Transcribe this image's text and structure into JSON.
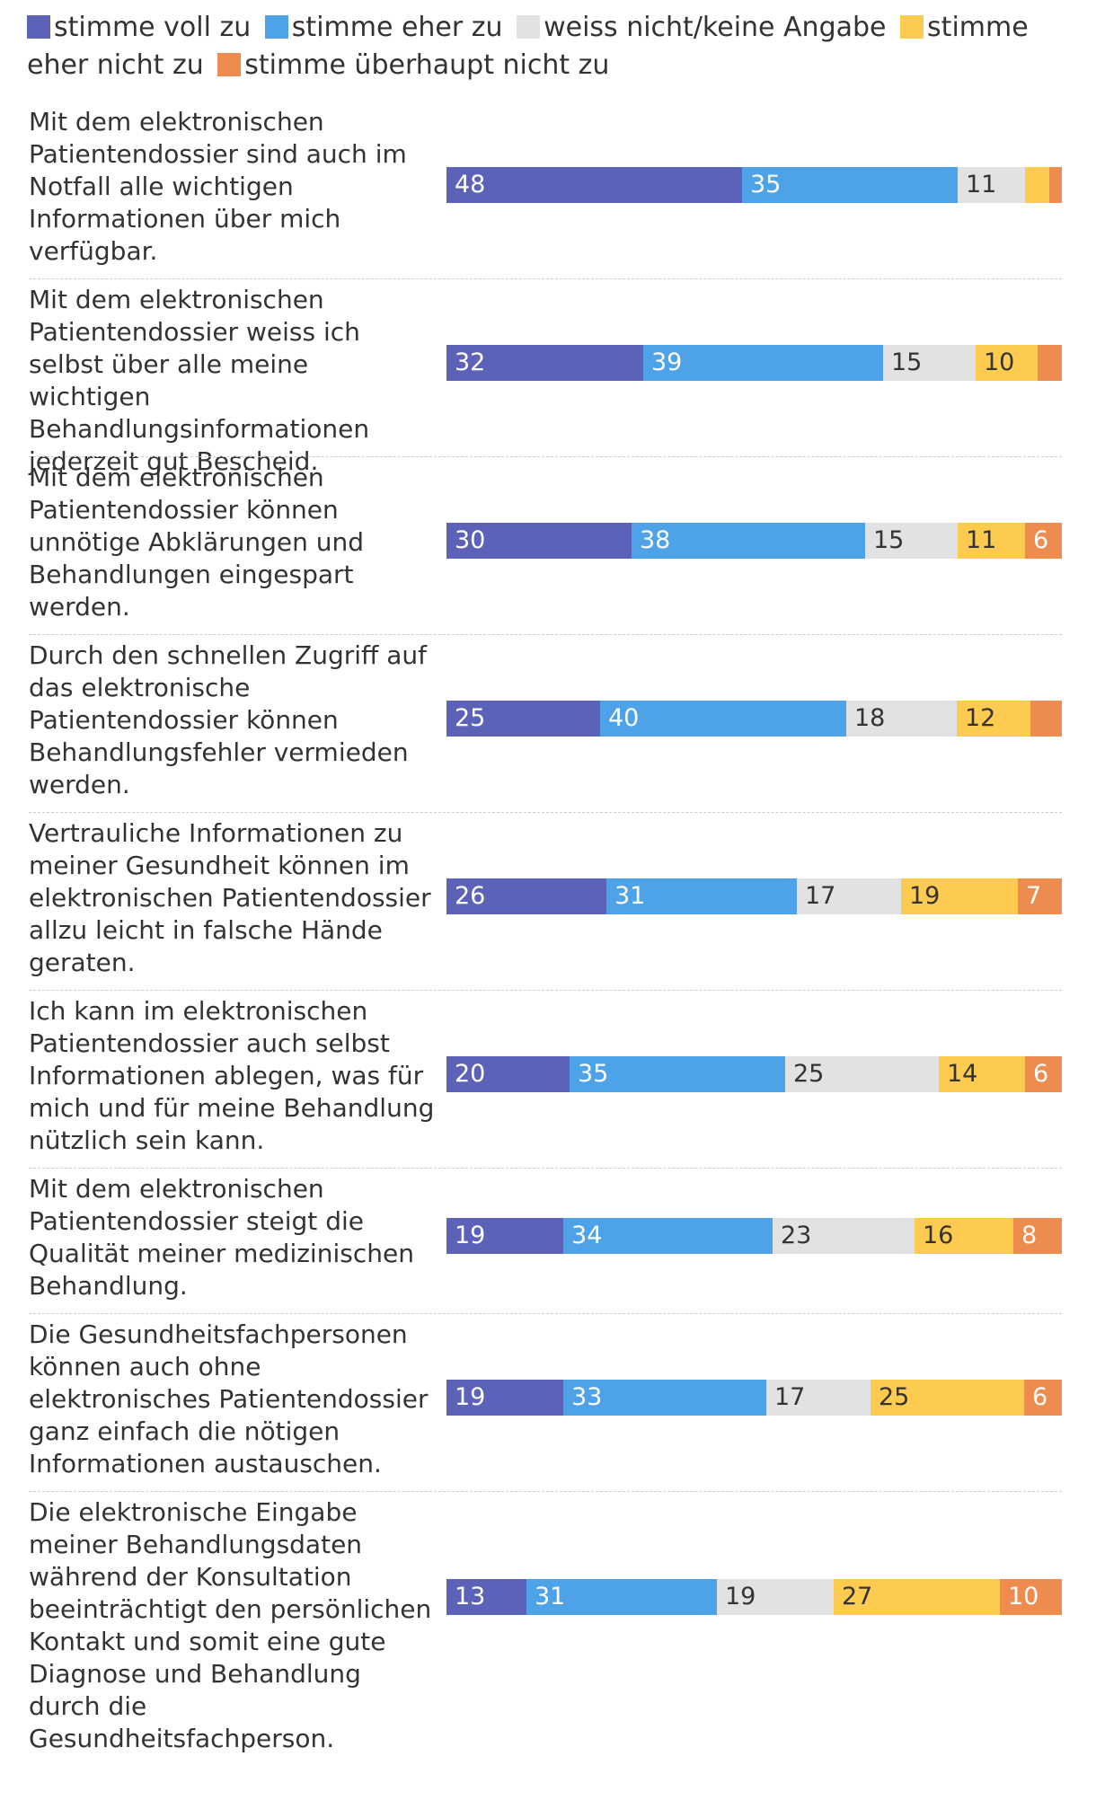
{
  "chart_data": {
    "type": "stacked-bar-horizontal",
    "unit": "percent",
    "legend": [
      {
        "name": "stimme voll zu",
        "color": "#5b62b8"
      },
      {
        "name": "stimme eher zu",
        "color": "#4ea3e8"
      },
      {
        "name": "weiss nicht/keine Angabe",
        "color": "#e2e2e2"
      },
      {
        "name": "stimme eher nicht zu",
        "color": "#fccb4f"
      },
      {
        "name": "stimme überhaupt nicht zu",
        "color": "#ee8b4f"
      }
    ],
    "label_colors": [
      "#ffffff",
      "#ffffff",
      "#333333",
      "#333333",
      "#ffffff"
    ],
    "categories": [
      "Mit dem elektronischen Patientendossier sind auch im Notfall alle wichtigen Informationen über mich verfügbar.",
      "Mit dem elektronischen Patientendossier weiss ich selbst über alle meine wichtigen Behandlungsinformationen jederzeit gut Bescheid.",
      "Mit dem elektronischen Patientendossier können unnötige Abklärungen und Behandlungen eingespart werden.",
      "Durch den schnellen Zugriff auf das elektronische Patientendossier können Behandlungsfehler vermieden werden.",
      "Vertrauliche Informationen zu meiner Gesundheit können im elektronischen Patientendossier allzu leicht in falsche Hände geraten.",
      "Ich kann im elektronischen Patientendossier auch selbst Informationen ablegen, was für mich und für meine Behandlung nützlich sein kann.",
      "Mit dem elektronischen Patientendossier steigt die Qualität meiner medizinischen Behandlung.",
      "Die Gesundheitsfachpersonen können auch ohne elektronisches Patientendossier ganz einfach die nötigen Informationen austauschen.",
      "Die elektronische Eingabe meiner Behandlungsdaten während der Konsultation beeinträchtigt den persönlichen Kontakt und somit eine gute Diagnose und Behandlung durch die Gesundheitsfachperson."
    ],
    "series": [
      {
        "name": "stimme voll zu",
        "values": [
          48,
          32,
          30,
          25,
          26,
          20,
          19,
          19,
          13
        ]
      },
      {
        "name": "stimme eher zu",
        "values": [
          35,
          39,
          38,
          40,
          31,
          35,
          34,
          33,
          31
        ]
      },
      {
        "name": "weiss nicht/keine Angabe",
        "values": [
          11,
          15,
          15,
          18,
          17,
          25,
          23,
          17,
          19
        ]
      },
      {
        "name": "stimme eher nicht zu",
        "values": [
          4,
          10,
          11,
          12,
          19,
          14,
          16,
          25,
          27
        ]
      },
      {
        "name": "stimme überhaupt nicht zu",
        "values": [
          2,
          4,
          6,
          5,
          7,
          6,
          8,
          6,
          10
        ]
      }
    ],
    "shown_labels": [
      [
        "48",
        "35",
        "11",
        "",
        ""
      ],
      [
        "32",
        "39",
        "15",
        "10",
        ""
      ],
      [
        "30",
        "38",
        "15",
        "11",
        "6"
      ],
      [
        "25",
        "40",
        "18",
        "12",
        ""
      ],
      [
        "26",
        "31",
        "17",
        "19",
        "7"
      ],
      [
        "20",
        "35",
        "25",
        "14",
        "6"
      ],
      [
        "19",
        "34",
        "23",
        "16",
        "8"
      ],
      [
        "19",
        "33",
        "17",
        "25",
        "6"
      ],
      [
        "13",
        "31",
        "19",
        "27",
        "10"
      ]
    ],
    "xlim": [
      0,
      100
    ]
  }
}
